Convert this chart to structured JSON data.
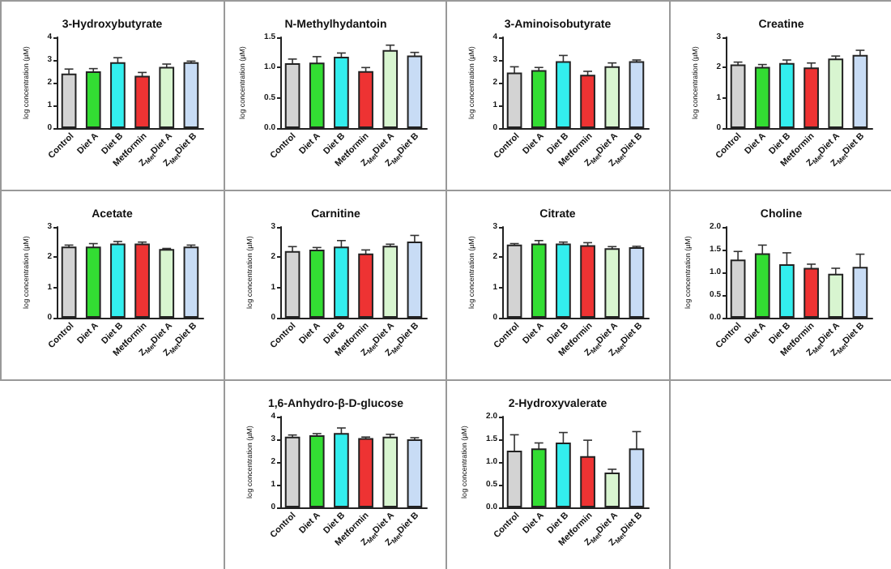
{
  "chart_data": [
    {
      "type": "bar",
      "title": "3-Hydroxybutyrate",
      "ylabel": "log concentration (µM)",
      "categories": [
        "Control",
        "Diet A",
        "Diet B",
        "Metformin",
        "Z$_{Met}$Diet A",
        "Z$_{Met}$Diet B"
      ],
      "values": [
        2.4,
        2.5,
        2.9,
        2.3,
        2.7,
        2.9
      ],
      "errors": [
        0.2,
        0.12,
        0.2,
        0.15,
        0.12,
        0.05
      ],
      "colors": [
        "#d3d3d3",
        "#33dd33",
        "#33eeee",
        "#ee3333",
        "#d8f5d0",
        "#c8dcf5"
      ],
      "ylim": [
        0,
        4
      ],
      "yticks": [
        0,
        1,
        2,
        3,
        4
      ],
      "grid": false
    },
    {
      "type": "bar",
      "title": "N-Methylhydantoin",
      "ylabel": "log concentration (µM)",
      "categories": [
        "Control",
        "Diet A",
        "Diet B",
        "Metformin",
        "Z$_{Met}$Diet A",
        "Z$_{Met}$Diet B"
      ],
      "values": [
        1.07,
        1.08,
        1.18,
        0.94,
        1.29,
        1.2
      ],
      "errors": [
        0.07,
        0.1,
        0.06,
        0.06,
        0.08,
        0.05
      ],
      "colors": [
        "#d3d3d3",
        "#33dd33",
        "#33eeee",
        "#ee3333",
        "#d8f5d0",
        "#c8dcf5"
      ],
      "ylim": [
        0,
        1.5
      ],
      "yticks": [
        {
          "value": 0,
          "label": "0.0"
        },
        {
          "value": 0.5,
          "label": "0.5"
        },
        {
          "value": 1,
          "label": "1.0"
        },
        {
          "value": 1.5,
          "label": "1.5"
        }
      ],
      "grid": false
    },
    {
      "type": "bar",
      "title": "3-Aminoisobutyrate",
      "ylabel": "log concentration (µM)",
      "categories": [
        "Control",
        "Diet A",
        "Diet B",
        "Metformin",
        "Z$_{Met}$Diet A",
        "Z$_{Met}$Diet B"
      ],
      "values": [
        2.45,
        2.55,
        2.95,
        2.35,
        2.72,
        2.95
      ],
      "errors": [
        0.25,
        0.12,
        0.25,
        0.15,
        0.15,
        0.05
      ],
      "colors": [
        "#d3d3d3",
        "#33dd33",
        "#33eeee",
        "#ee3333",
        "#d8f5d0",
        "#c8dcf5"
      ],
      "ylim": [
        0,
        4
      ],
      "yticks": [
        0,
        1,
        2,
        3,
        4
      ],
      "grid": false
    },
    {
      "type": "bar",
      "title": "Creatine",
      "ylabel": "log concentration (µM)",
      "categories": [
        "Control",
        "Diet A",
        "Diet B",
        "Metformin",
        "Z$_{Met}$Diet A",
        "Z$_{Met}$Diet B"
      ],
      "values": [
        2.1,
        2.02,
        2.15,
        2.0,
        2.3,
        2.42
      ],
      "errors": [
        0.08,
        0.08,
        0.1,
        0.15,
        0.08,
        0.15
      ],
      "colors": [
        "#d3d3d3",
        "#33dd33",
        "#33eeee",
        "#ee3333",
        "#d8f5d0",
        "#c8dcf5"
      ],
      "ylim": [
        0,
        3
      ],
      "yticks": [
        0,
        1,
        2,
        3
      ],
      "grid": false
    },
    {
      "type": "bar",
      "title": "Acetate",
      "ylabel": "log concentration (µM)",
      "categories": [
        "Control",
        "Diet A",
        "Diet B",
        "Metformin",
        "Z$_{Met}$Diet A",
        "Z$_{Met}$Diet B"
      ],
      "values": [
        2.35,
        2.35,
        2.45,
        2.45,
        2.27,
        2.35
      ],
      "errors": [
        0.05,
        0.1,
        0.07,
        0.05,
        0.02,
        0.05
      ],
      "colors": [
        "#d3d3d3",
        "#33dd33",
        "#33eeee",
        "#ee3333",
        "#d8f5d0",
        "#c8dcf5"
      ],
      "ylim": [
        0,
        3
      ],
      "yticks": [
        0,
        1,
        2,
        3
      ],
      "grid": false
    },
    {
      "type": "bar",
      "title": "Carnitine",
      "ylabel": "log concentration (µM)",
      "categories": [
        "Control",
        "Diet A",
        "Diet B",
        "Metformin",
        "Z$_{Met}$Diet A",
        "Z$_{Met}$Diet B"
      ],
      "values": [
        2.2,
        2.25,
        2.35,
        2.12,
        2.38,
        2.52
      ],
      "errors": [
        0.15,
        0.07,
        0.2,
        0.12,
        0.05,
        0.2
      ],
      "colors": [
        "#d3d3d3",
        "#33dd33",
        "#33eeee",
        "#ee3333",
        "#d8f5d0",
        "#c8dcf5"
      ],
      "ylim": [
        0,
        3
      ],
      "yticks": [
        0,
        1,
        2,
        3
      ],
      "grid": false
    },
    {
      "type": "bar",
      "title": "Citrate",
      "ylabel": "log concentration (µM)",
      "categories": [
        "Control",
        "Diet A",
        "Diet B",
        "Metformin",
        "Z$_{Met}$Diet A",
        "Z$_{Met}$Diet B"
      ],
      "values": [
        2.42,
        2.45,
        2.45,
        2.4,
        2.3,
        2.33
      ],
      "errors": [
        0.03,
        0.1,
        0.05,
        0.08,
        0.05,
        0.03
      ],
      "colors": [
        "#d3d3d3",
        "#33dd33",
        "#33eeee",
        "#ee3333",
        "#d8f5d0",
        "#c8dcf5"
      ],
      "ylim": [
        0,
        3
      ],
      "yticks": [
        0,
        1,
        2,
        3
      ],
      "grid": false
    },
    {
      "type": "bar",
      "title": "Choline",
      "ylabel": "log concentration (µM)",
      "categories": [
        "Control",
        "Diet A",
        "Diet B",
        "Metformin",
        "Z$_{Met}$Diet A",
        "Z$_{Met}$Diet B"
      ],
      "values": [
        1.28,
        1.42,
        1.18,
        1.1,
        0.97,
        1.12
      ],
      "errors": [
        0.18,
        0.18,
        0.25,
        0.08,
        0.12,
        0.28
      ],
      "colors": [
        "#d3d3d3",
        "#33dd33",
        "#33eeee",
        "#ee3333",
        "#d8f5d0",
        "#c8dcf5"
      ],
      "ylim": [
        0,
        2
      ],
      "yticks": [
        {
          "value": 0,
          "label": "0.0"
        },
        {
          "value": 0.5,
          "label": "0.5"
        },
        {
          "value": 1,
          "label": "1.0"
        },
        {
          "value": 1.5,
          "label": "1.5"
        },
        {
          "value": 2,
          "label": "2.0"
        }
      ],
      "grid": false
    },
    {
      "type": "bar",
      "title": "1,6-Anhydro-β-D-glucose",
      "ylabel": "log concentration (µM)",
      "categories": [
        "Control",
        "Diet A",
        "Diet B",
        "Metformin",
        "Z$_{Met}$Diet A",
        "Z$_{Met}$Diet B"
      ],
      "values": [
        3.12,
        3.18,
        3.28,
        3.05,
        3.12,
        3.0
      ],
      "errors": [
        0.07,
        0.07,
        0.22,
        0.05,
        0.1,
        0.07
      ],
      "colors": [
        "#d3d3d3",
        "#33dd33",
        "#33eeee",
        "#ee3333",
        "#d8f5d0",
        "#c8dcf5"
      ],
      "ylim": [
        0,
        4
      ],
      "yticks": [
        0,
        1,
        2,
        3,
        4
      ],
      "grid": false
    },
    {
      "type": "bar",
      "title": "2-Hydroxyvalerate",
      "ylabel": "log concentration (µM)",
      "categories": [
        "Control",
        "Diet A",
        "Diet B",
        "Metformin",
        "Z$_{Met}$Diet A",
        "Z$_{Met}$Diet B"
      ],
      "values": [
        1.25,
        1.3,
        1.43,
        1.13,
        0.77,
        1.3
      ],
      "errors": [
        0.35,
        0.12,
        0.22,
        0.35,
        0.07,
        0.37
      ],
      "colors": [
        "#d3d3d3",
        "#33dd33",
        "#33eeee",
        "#ee3333",
        "#d8f5d0",
        "#c8dcf5"
      ],
      "ylim": [
        0,
        2
      ],
      "yticks": [
        {
          "value": 0,
          "label": "0.0"
        },
        {
          "value": 0.5,
          "label": "0.5"
        },
        {
          "value": 1,
          "label": "1.0"
        },
        {
          "value": 1.5,
          "label": "1.5"
        },
        {
          "value": 2,
          "label": "2.0"
        }
      ],
      "grid": false
    }
  ]
}
